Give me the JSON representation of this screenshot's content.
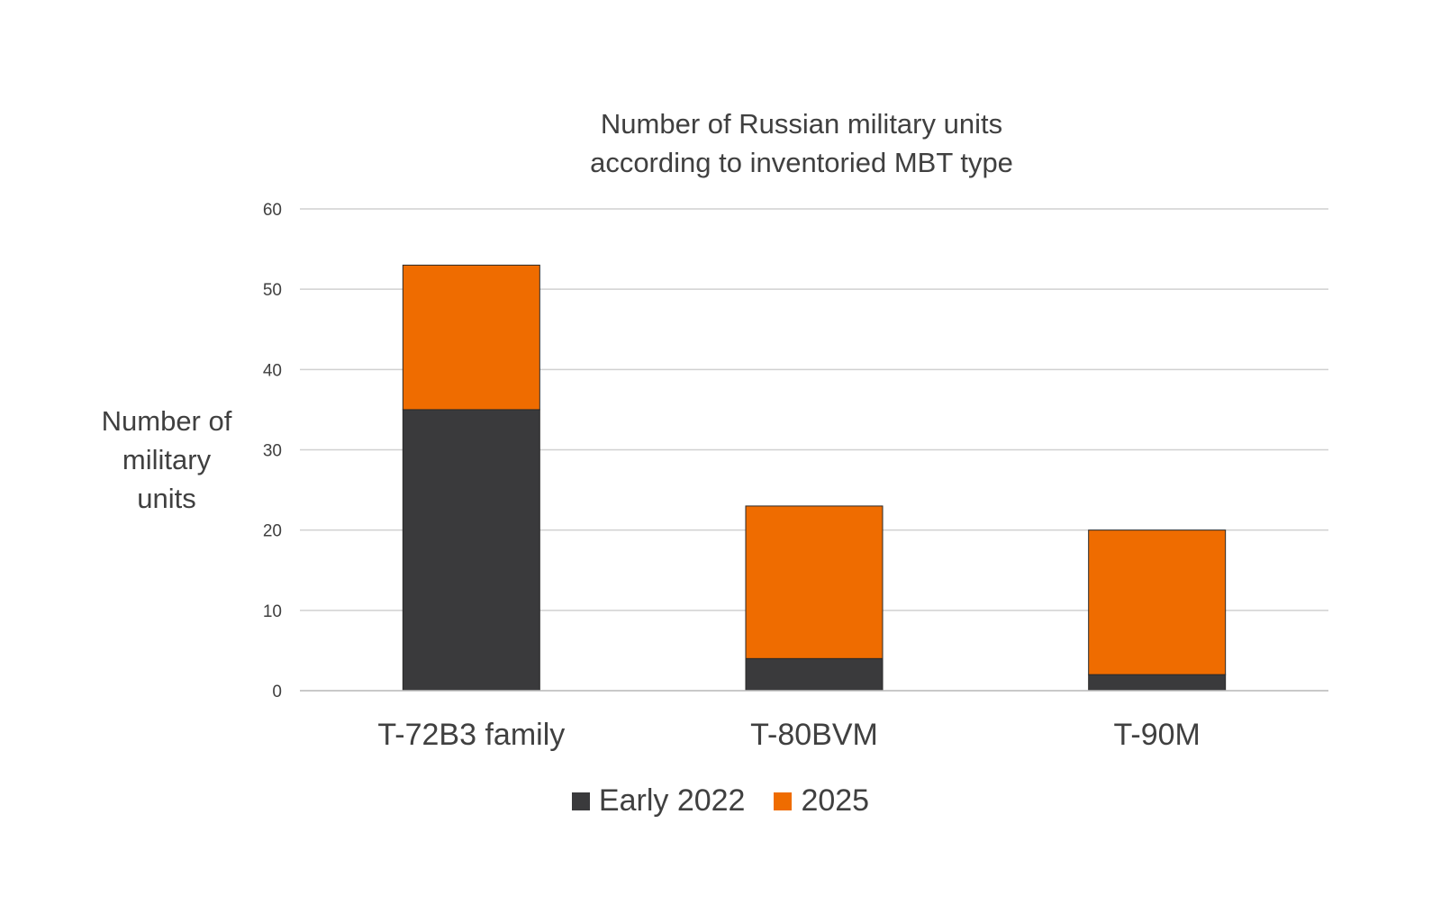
{
  "chart_data": {
    "type": "bar",
    "stacked": true,
    "title": "Number of Russian military units according to inventoried MBT type",
    "title_lines": [
      "Number of Russian military units",
      "according to inventoried MBT type"
    ],
    "ylabel": "Number of military units",
    "ylabel_lines": [
      "Number of",
      "military",
      "units"
    ],
    "xlabel": "",
    "categories": [
      "T-72B3 family",
      "T-80BVM",
      "T-90M"
    ],
    "series": [
      {
        "name": "Early 2022",
        "values": [
          35,
          4,
          2
        ],
        "color": "#3a3a3c"
      },
      {
        "name": "2025",
        "values": [
          18,
          19,
          18
        ],
        "color": "#ef6c00"
      }
    ],
    "ylim": [
      0,
      60
    ],
    "yticks": [
      "0",
      "10",
      "20",
      "30",
      "40",
      "50",
      "60"
    ],
    "grid": true,
    "legend_position": "bottom"
  }
}
